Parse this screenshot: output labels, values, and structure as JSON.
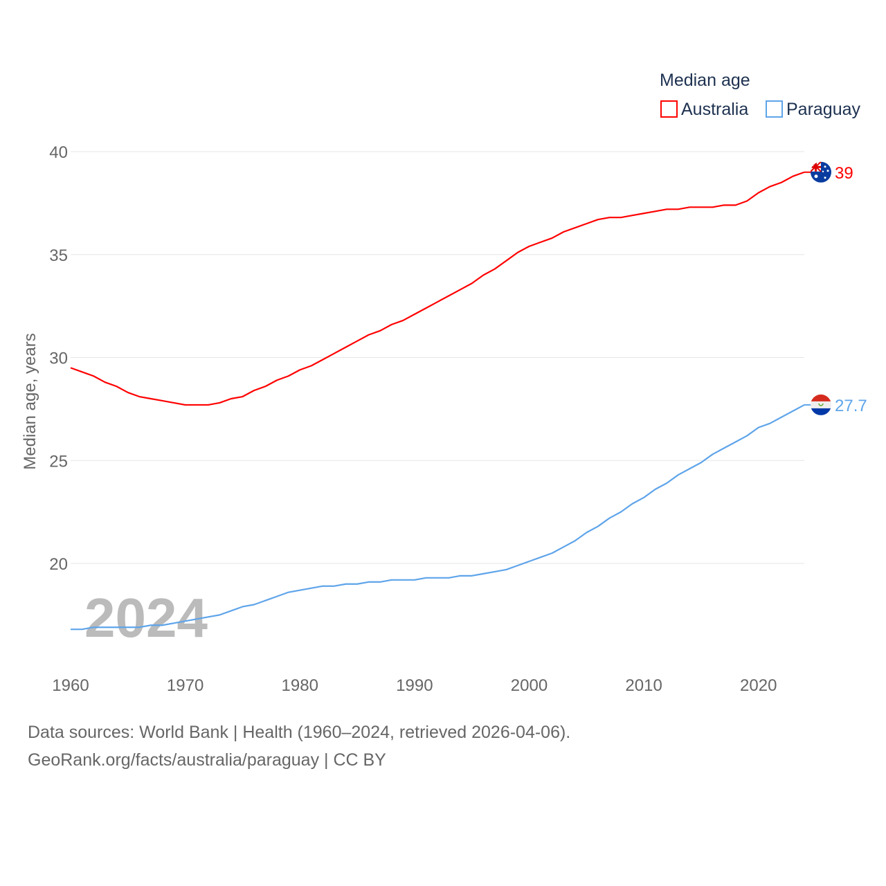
{
  "chart_data": {
    "type": "line",
    "title": "",
    "xlabel": "",
    "ylabel": "Median age, years",
    "xlim": [
      1960,
      2024
    ],
    "ylim": [
      15,
      40
    ],
    "grid": true,
    "legend_title": "Median age",
    "legend_position": "top-right",
    "watermark_year": "2024",
    "x_ticks": [
      1960,
      1970,
      1980,
      1990,
      2000,
      2010,
      2020
    ],
    "y_ticks": [
      20,
      25,
      30,
      35,
      40
    ],
    "x": [
      1960,
      1961,
      1962,
      1963,
      1964,
      1965,
      1966,
      1967,
      1968,
      1969,
      1970,
      1971,
      1972,
      1973,
      1974,
      1975,
      1976,
      1977,
      1978,
      1979,
      1980,
      1981,
      1982,
      1983,
      1984,
      1985,
      1986,
      1987,
      1988,
      1989,
      1990,
      1991,
      1992,
      1993,
      1994,
      1995,
      1996,
      1997,
      1998,
      1999,
      2000,
      2001,
      2002,
      2003,
      2004,
      2005,
      2006,
      2007,
      2008,
      2009,
      2010,
      2011,
      2012,
      2013,
      2014,
      2015,
      2016,
      2017,
      2018,
      2019,
      2020,
      2021,
      2022,
      2023,
      2024
    ],
    "series": [
      {
        "name": "Australia",
        "color": "#ff0000",
        "end_label": "39",
        "values": [
          29.5,
          29.3,
          29.1,
          28.8,
          28.6,
          28.3,
          28.1,
          28.0,
          27.9,
          27.8,
          27.7,
          27.7,
          27.7,
          27.8,
          28.0,
          28.1,
          28.4,
          28.6,
          28.9,
          29.1,
          29.4,
          29.6,
          29.9,
          30.2,
          30.5,
          30.8,
          31.1,
          31.3,
          31.6,
          31.8,
          32.1,
          32.4,
          32.7,
          33.0,
          33.3,
          33.6,
          34.0,
          34.3,
          34.7,
          35.1,
          35.4,
          35.6,
          35.8,
          36.1,
          36.3,
          36.5,
          36.7,
          36.8,
          36.8,
          36.9,
          37.0,
          37.1,
          37.2,
          37.2,
          37.3,
          37.3,
          37.3,
          37.4,
          37.4,
          37.6,
          38.0,
          38.3,
          38.5,
          38.8,
          39.0
        ]
      },
      {
        "name": "Paraguay",
        "color": "#5ea4ea",
        "end_label": "27.7",
        "values": [
          16.8,
          16.8,
          16.9,
          16.9,
          16.9,
          16.9,
          16.9,
          17.0,
          17.0,
          17.1,
          17.2,
          17.3,
          17.4,
          17.5,
          17.7,
          17.9,
          18.0,
          18.2,
          18.4,
          18.6,
          18.7,
          18.8,
          18.9,
          18.9,
          19.0,
          19.0,
          19.1,
          19.1,
          19.2,
          19.2,
          19.2,
          19.3,
          19.3,
          19.3,
          19.4,
          19.4,
          19.5,
          19.6,
          19.7,
          19.9,
          20.1,
          20.3,
          20.5,
          20.8,
          21.1,
          21.5,
          21.8,
          22.2,
          22.5,
          22.9,
          23.2,
          23.6,
          23.9,
          24.3,
          24.6,
          24.9,
          25.3,
          25.6,
          25.9,
          26.2,
          26.6,
          26.8,
          27.1,
          27.4,
          27.7
        ]
      }
    ]
  },
  "footer": {
    "line1": "Data sources: World Bank | Health (1960–2024, retrieved 2026-04-06).",
    "line2": "GeoRank.org/facts/australia/paraguay | CC BY"
  }
}
